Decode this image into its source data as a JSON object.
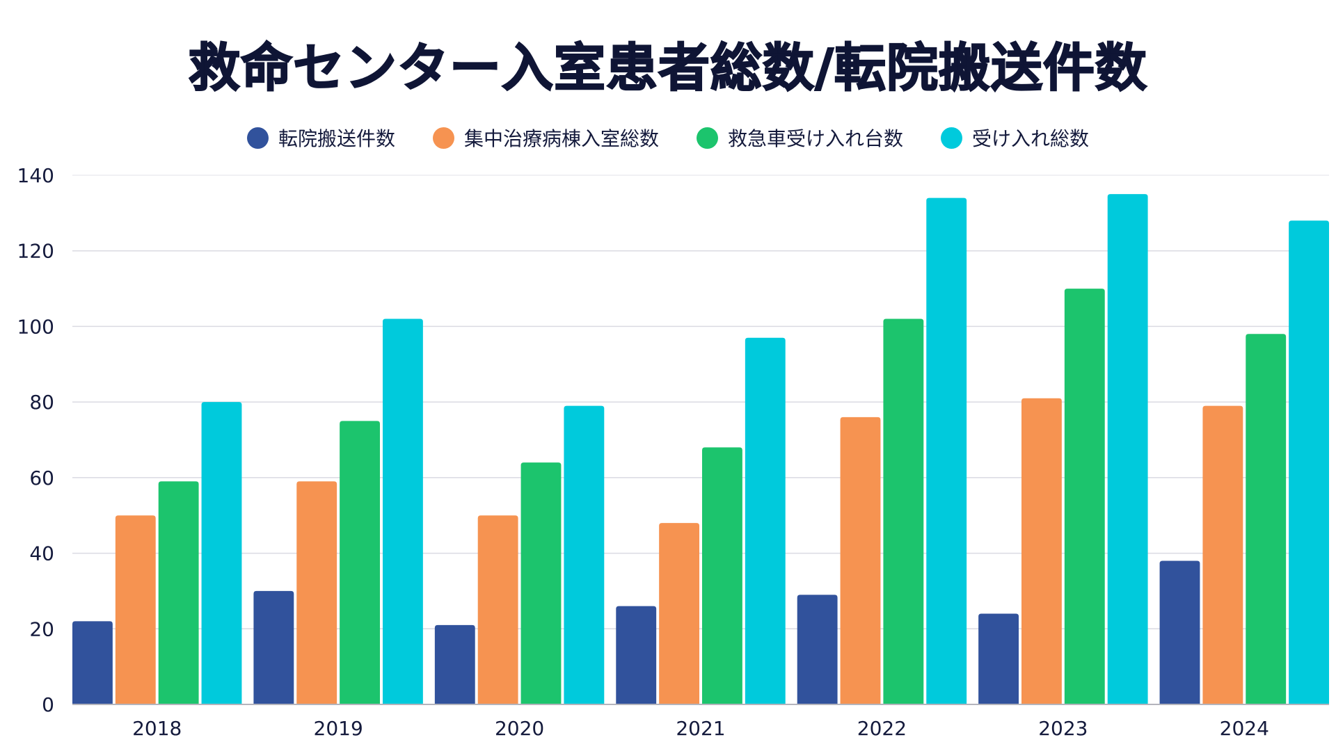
{
  "chart_data": {
    "type": "bar",
    "title": "救命センター入室患者総数/転院搬送件数",
    "xlabel": "",
    "ylabel": "",
    "categories": [
      "2018",
      "2019",
      "2020",
      "2021",
      "2022",
      "2023",
      "2024"
    ],
    "ylim": [
      0,
      140
    ],
    "yticks": [
      0,
      20,
      40,
      60,
      80,
      100,
      120,
      140
    ],
    "grid": true,
    "legend_position": "top-center",
    "series": [
      {
        "name": "転院搬送件数",
        "color": "#31529c",
        "values": [
          22,
          30,
          21,
          26,
          29,
          24,
          38
        ]
      },
      {
        "name": "集中治療病棟入室総数",
        "color": "#f69351",
        "values": [
          50,
          59,
          50,
          48,
          76,
          81,
          79
        ]
      },
      {
        "name": "救急車受け入れ台数",
        "color": "#1cc46d",
        "values": [
          59,
          75,
          64,
          68,
          102,
          110,
          98
        ]
      },
      {
        "name": "受け入れ総数",
        "color": "#00cadc",
        "values": [
          80,
          102,
          79,
          97,
          134,
          135,
          128
        ]
      }
    ]
  }
}
